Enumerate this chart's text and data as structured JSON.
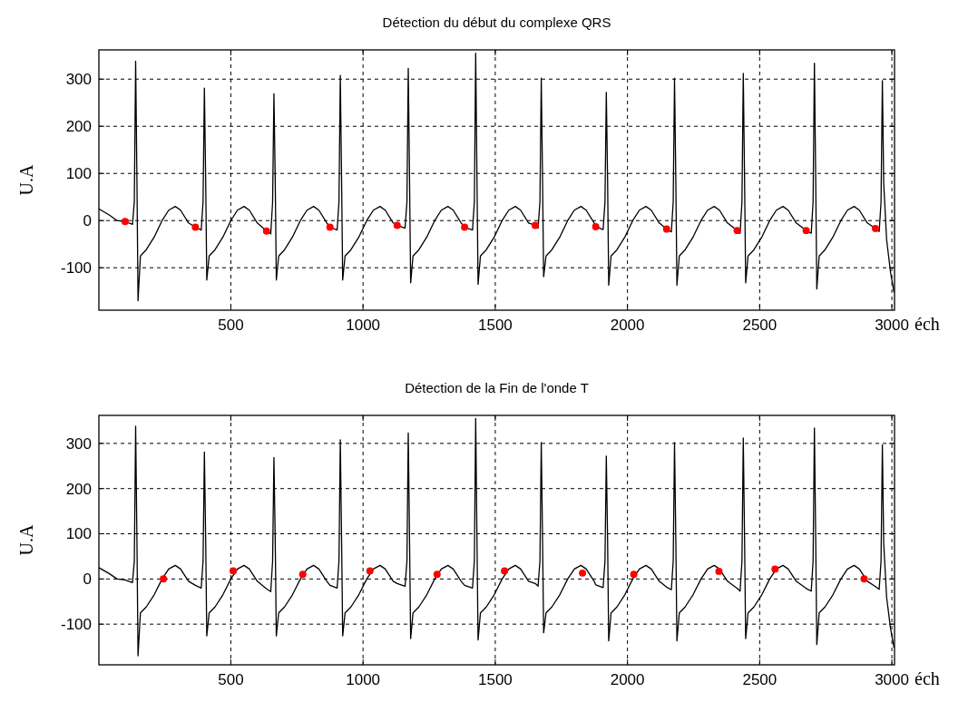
{
  "chart_data": [
    {
      "type": "line",
      "title": "Détection du début du complexe QRS",
      "xlabel": "éch",
      "ylabel": "U.A",
      "xlim": [
        1,
        3010
      ],
      "ylim": [
        -190,
        362
      ],
      "xticks": [
        500,
        1000,
        1500,
        2000,
        2500,
        3000
      ],
      "yticks": [
        -100,
        0,
        100,
        200,
        300
      ],
      "grid": true,
      "series": [
        {
          "type": "line",
          "color": "#000000",
          "x": [
            1,
            40,
            70,
            100,
            128,
            135,
            140,
            145,
            149,
            158,
            180,
            210,
            240,
            265,
            290,
            310,
            340,
            366,
            388,
            395,
            400,
            405,
            409,
            418,
            440,
            470,
            500,
            525,
            550,
            570,
            600,
            635,
            651,
            658,
            663,
            668,
            672,
            681,
            703,
            733,
            763,
            788,
            813,
            833,
            863,
            875,
            902,
            909,
            914,
            919,
            923,
            932,
            954,
            984,
            1014,
            1039,
            1064,
            1084,
            1114,
            1129,
            1159,
            1166,
            1171,
            1176,
            1180,
            1189,
            1211,
            1241,
            1271,
            1296,
            1321,
            1341,
            1371,
            1384,
            1414,
            1421,
            1426,
            1431,
            1435,
            1444,
            1466,
            1496,
            1526,
            1551,
            1576,
            1596,
            1626,
            1651,
            1662,
            1669,
            1674,
            1679,
            1683,
            1692,
            1714,
            1744,
            1774,
            1799,
            1824,
            1844,
            1874,
            1880,
            1908,
            1915,
            1920,
            1925,
            1929,
            1938,
            1960,
            1990,
            2020,
            2045,
            2070,
            2090,
            2120,
            2148,
            2166,
            2173,
            2178,
            2183,
            2187,
            2196,
            2218,
            2248,
            2278,
            2303,
            2328,
            2348,
            2378,
            2415,
            2426,
            2433,
            2438,
            2443,
            2447,
            2456,
            2478,
            2508,
            2538,
            2563,
            2588,
            2608,
            2638,
            2676,
            2695,
            2702,
            2707,
            2712,
            2716,
            2725,
            2747,
            2777,
            2807,
            2832,
            2857,
            2877,
            2907,
            2938,
            2952,
            2959,
            2964,
            2969,
            2980,
            2995,
            3008
          ],
          "values": [
            25,
            12,
            0,
            -2,
            -8,
            40,
            338,
            80,
            -170,
            -75,
            -62,
            -35,
            0,
            22,
            30,
            22,
            -5,
            -14,
            -20,
            40,
            281,
            80,
            -126,
            -75,
            -62,
            -35,
            0,
            22,
            30,
            22,
            -5,
            -22,
            -28,
            40,
            269,
            80,
            -126,
            -75,
            -62,
            -35,
            0,
            22,
            30,
            22,
            -5,
            -14,
            -20,
            40,
            308,
            80,
            -126,
            -75,
            -62,
            -35,
            0,
            22,
            30,
            22,
            -5,
            -10,
            -16,
            40,
            323,
            80,
            -132,
            -75,
            -62,
            -35,
            0,
            22,
            30,
            22,
            -5,
            -14,
            -20,
            40,
            355,
            80,
            -135,
            -75,
            -62,
            -35,
            0,
            22,
            30,
            22,
            -5,
            -10,
            -16,
            40,
            302,
            80,
            -119,
            -75,
            -62,
            -35,
            0,
            22,
            30,
            22,
            -5,
            -13,
            -19,
            40,
            272,
            80,
            -137,
            -75,
            -62,
            -35,
            0,
            22,
            30,
            22,
            -5,
            -18,
            -24,
            40,
            302,
            80,
            -137,
            -75,
            -62,
            -35,
            0,
            22,
            30,
            22,
            -5,
            -21,
            -27,
            40,
            312,
            80,
            -132,
            -75,
            -62,
            -35,
            0,
            22,
            30,
            22,
            -5,
            -21,
            -27,
            40,
            334,
            80,
            -145,
            -75,
            -62,
            -35,
            0,
            22,
            30,
            22,
            -5,
            -17,
            -23,
            40,
            297,
            80,
            -40,
            -110,
            -152
          ]
        },
        {
          "type": "scatter",
          "color": "#ff0000",
          "marker": "circle",
          "x": [
            100,
            366,
            635,
            875,
            1129,
            1384,
            1651,
            1880,
            2148,
            2415,
            2676,
            2938
          ],
          "values": [
            -2,
            -14,
            -22,
            -14,
            -10,
            -14,
            -10,
            -13,
            -18,
            -21,
            -21,
            -17
          ]
        }
      ]
    },
    {
      "type": "line",
      "title": "Détection de la Fin de l'onde T",
      "xlabel": "éch",
      "ylabel": "U.A",
      "xlim": [
        1,
        3010
      ],
      "ylim": [
        -190,
        362
      ],
      "xticks": [
        500,
        1000,
        1500,
        2000,
        2500,
        3000
      ],
      "yticks": [
        -100,
        0,
        100,
        200,
        300
      ],
      "grid": true,
      "series": [
        {
          "type": "line",
          "color": "#000000",
          "x": [
            1,
            40,
            70,
            100,
            128,
            135,
            140,
            145,
            149,
            158,
            180,
            210,
            240,
            265,
            290,
            310,
            340,
            366,
            388,
            395,
            400,
            405,
            409,
            418,
            440,
            470,
            500,
            525,
            550,
            570,
            600,
            635,
            651,
            658,
            663,
            668,
            672,
            681,
            703,
            733,
            763,
            788,
            813,
            833,
            863,
            875,
            902,
            909,
            914,
            919,
            923,
            932,
            954,
            984,
            1014,
            1039,
            1064,
            1084,
            1114,
            1129,
            1159,
            1166,
            1171,
            1176,
            1180,
            1189,
            1211,
            1241,
            1271,
            1296,
            1321,
            1341,
            1371,
            1384,
            1414,
            1421,
            1426,
            1431,
            1435,
            1444,
            1466,
            1496,
            1526,
            1551,
            1576,
            1596,
            1626,
            1651,
            1662,
            1669,
            1674,
            1679,
            1683,
            1692,
            1714,
            1744,
            1774,
            1799,
            1824,
            1844,
            1874,
            1880,
            1908,
            1915,
            1920,
            1925,
            1929,
            1938,
            1960,
            1990,
            2020,
            2045,
            2070,
            2090,
            2120,
            2148,
            2166,
            2173,
            2178,
            2183,
            2187,
            2196,
            2218,
            2248,
            2278,
            2303,
            2328,
            2348,
            2378,
            2415,
            2426,
            2433,
            2438,
            2443,
            2447,
            2456,
            2478,
            2508,
            2538,
            2563,
            2588,
            2608,
            2638,
            2676,
            2695,
            2702,
            2707,
            2712,
            2716,
            2725,
            2747,
            2777,
            2807,
            2832,
            2857,
            2877,
            2907,
            2938,
            2952,
            2959,
            2964,
            2969,
            2980,
            2995,
            3008
          ],
          "values": [
            25,
            12,
            0,
            -2,
            -8,
            40,
            338,
            80,
            -170,
            -75,
            -62,
            -35,
            0,
            22,
            30,
            22,
            -5,
            -14,
            -20,
            40,
            281,
            80,
            -126,
            -75,
            -62,
            -35,
            0,
            22,
            30,
            22,
            -5,
            -22,
            -28,
            40,
            269,
            80,
            -126,
            -75,
            -62,
            -35,
            0,
            22,
            30,
            22,
            -5,
            -14,
            -20,
            40,
            308,
            80,
            -126,
            -75,
            -62,
            -35,
            0,
            22,
            30,
            22,
            -5,
            -10,
            -16,
            40,
            323,
            80,
            -132,
            -75,
            -62,
            -35,
            0,
            22,
            30,
            22,
            -5,
            -14,
            -20,
            40,
            355,
            80,
            -135,
            -75,
            -62,
            -35,
            0,
            22,
            30,
            22,
            -5,
            -10,
            -16,
            40,
            302,
            80,
            -119,
            -75,
            -62,
            -35,
            0,
            22,
            30,
            22,
            -5,
            -13,
            -19,
            40,
            272,
            80,
            -137,
            -75,
            -62,
            -35,
            0,
            22,
            30,
            22,
            -5,
            -18,
            -24,
            40,
            302,
            80,
            -137,
            -75,
            -62,
            -35,
            0,
            22,
            30,
            22,
            -5,
            -21,
            -27,
            40,
            312,
            80,
            -132,
            -75,
            -62,
            -35,
            0,
            22,
            30,
            22,
            -5,
            -21,
            -27,
            40,
            334,
            80,
            -145,
            -75,
            -62,
            -35,
            0,
            22,
            30,
            22,
            -5,
            -17,
            -23,
            40,
            297,
            80,
            -40,
            -110,
            -152
          ]
        },
        {
          "type": "scatter",
          "color": "#ff0000",
          "marker": "circle",
          "x": [
            245,
            509,
            772,
            1026,
            1280,
            1535,
            1830,
            2024,
            2346,
            2558,
            2895
          ],
          "values": [
            0,
            18,
            10,
            18,
            10,
            18,
            13,
            10,
            17,
            22,
            0
          ]
        }
      ]
    }
  ]
}
